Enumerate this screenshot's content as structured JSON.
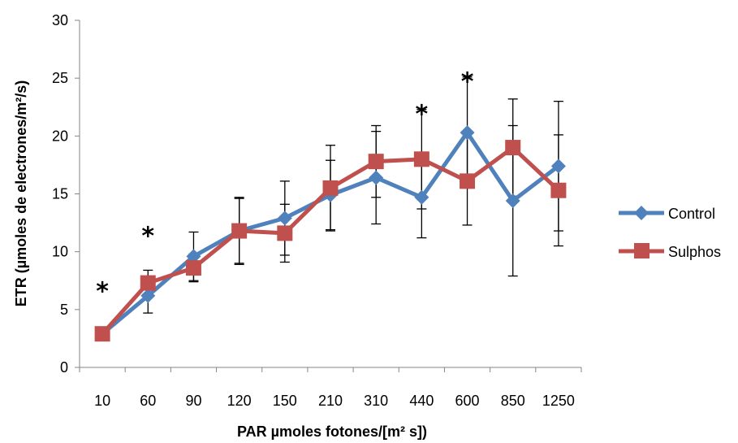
{
  "chart_data": {
    "type": "line",
    "title": "",
    "xlabel": "PAR µmoles fotones/[m² s])",
    "ylabel": "ETR (µmoles de electrones/m²/s)",
    "categories": [
      "10",
      "60",
      "90",
      "120",
      "150",
      "210",
      "310",
      "440",
      "600",
      "850",
      "1250"
    ],
    "ylim": [
      0,
      30
    ],
    "yticks": [
      0,
      5,
      10,
      15,
      20,
      25,
      30
    ],
    "grid": false,
    "legend_position": "right",
    "series": [
      {
        "name": "Control",
        "color": "#4F81BD",
        "marker": "diamond",
        "values": [
          2.9,
          6.2,
          9.6,
          11.8,
          12.9,
          14.9,
          16.4,
          14.7,
          20.3,
          14.4,
          17.4
        ],
        "error": [
          0.3,
          1.5,
          2.1,
          2.9,
          3.2,
          3.0,
          4.0,
          3.5,
          4.8,
          6.5,
          5.6
        ]
      },
      {
        "name": "Sulphos",
        "color": "#C0504D",
        "marker": "square",
        "values": [
          2.9,
          7.3,
          8.6,
          11.8,
          11.6,
          15.5,
          17.8,
          18.0,
          16.1,
          19.0,
          15.3
        ],
        "error": [
          0.3,
          1.1,
          1.2,
          2.8,
          2.5,
          3.7,
          3.1,
          4.3,
          3.8,
          4.2,
          4.8
        ]
      }
    ],
    "significance_markers": {
      "symbol": "*",
      "categories": [
        "10",
        "60",
        "440",
        "600"
      ]
    }
  }
}
